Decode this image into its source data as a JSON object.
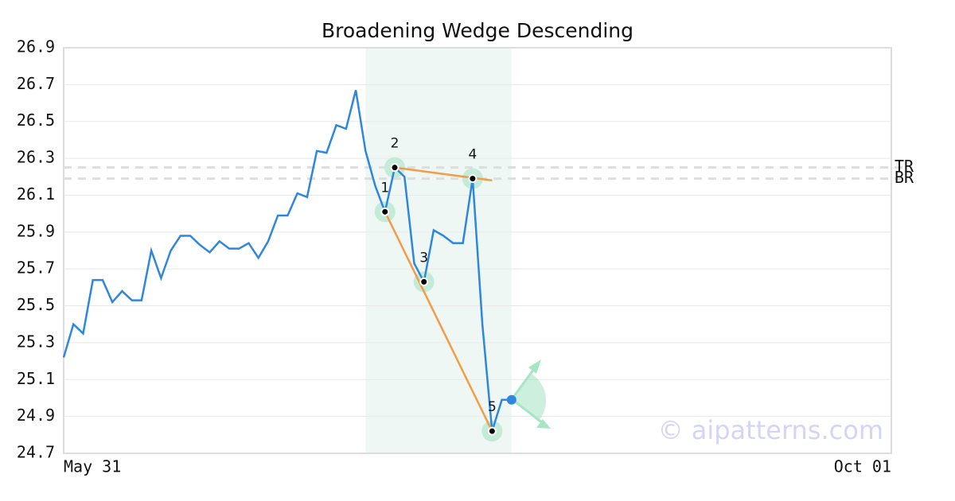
{
  "chart_data": {
    "type": "line",
    "title": "Broadening Wedge Descending",
    "categories": [
      "May 31",
      null,
      null,
      null,
      null,
      null,
      null,
      null,
      null,
      null,
      null,
      null,
      null,
      null,
      null,
      null,
      null,
      null,
      null,
      null,
      null,
      null,
      null,
      null,
      null,
      null,
      null,
      null,
      null,
      null,
      null,
      null,
      null,
      null,
      null,
      null,
      null,
      null,
      null,
      null,
      null,
      null,
      null,
      null,
      null,
      null,
      null,
      null,
      null,
      null,
      null,
      null,
      null,
      null,
      null,
      null,
      null,
      null,
      null,
      null,
      null,
      null,
      null,
      null,
      null,
      null,
      null,
      null,
      null,
      null,
      null,
      null,
      null,
      null,
      null,
      null,
      null,
      null,
      null,
      null,
      null,
      null,
      null,
      null,
      null,
      "Oct 01"
    ],
    "values": [
      25.22,
      25.4,
      25.35,
      25.64,
      25.64,
      25.52,
      25.58,
      25.53,
      25.53,
      25.8,
      25.65,
      25.8,
      25.88,
      25.88,
      25.83,
      25.79,
      25.85,
      25.81,
      25.81,
      25.84,
      25.76,
      25.85,
      25.99,
      25.99,
      26.11,
      26.09,
      26.34,
      26.33,
      26.48,
      26.46,
      26.67,
      26.34,
      26.15,
      26.01,
      26.25,
      26.2,
      25.73,
      25.63,
      25.91,
      25.88,
      25.84,
      25.84,
      26.19,
      25.4,
      24.82,
      24.99,
      24.99,
      null,
      null,
      null,
      null,
      null,
      null,
      null,
      null,
      null,
      null,
      null,
      null,
      null,
      null,
      null,
      null,
      null,
      null,
      null,
      null,
      null,
      null,
      null,
      null,
      null,
      null,
      null,
      null,
      null,
      null,
      null,
      null,
      null,
      null,
      null,
      null,
      null,
      null,
      null
    ],
    "color": "#2e86de",
    "ylim": [
      24.7,
      26.9
    ],
    "yticks": [
      24.7,
      24.9,
      25.1,
      25.3,
      25.5,
      25.7,
      25.9,
      26.1,
      26.3,
      26.5,
      26.7,
      26.9
    ],
    "grid": true,
    "pattern_region": [
      31,
      46
    ],
    "pattern_points": [
      {
        "label": "1",
        "x": 33,
        "y": 26.01
      },
      {
        "label": "2",
        "x": 34,
        "y": 26.25
      },
      {
        "label": "3",
        "x": 37,
        "y": 25.63
      },
      {
        "label": "4",
        "x": 42,
        "y": 26.19
      },
      {
        "label": "5",
        "x": 44,
        "y": 24.82
      }
    ],
    "trendlines": [
      {
        "x": [
          33,
          44
        ],
        "y": [
          26.01,
          24.82
        ],
        "color": "#f39c45"
      },
      {
        "x": [
          34,
          44
        ],
        "y": [
          26.25,
          26.18
        ],
        "color": "#f39c45"
      }
    ],
    "levels": [
      {
        "label": "TR",
        "value": 26.25
      },
      {
        "label": "BR",
        "value": 26.19
      }
    ],
    "watermark": "© aipatterns.com"
  }
}
